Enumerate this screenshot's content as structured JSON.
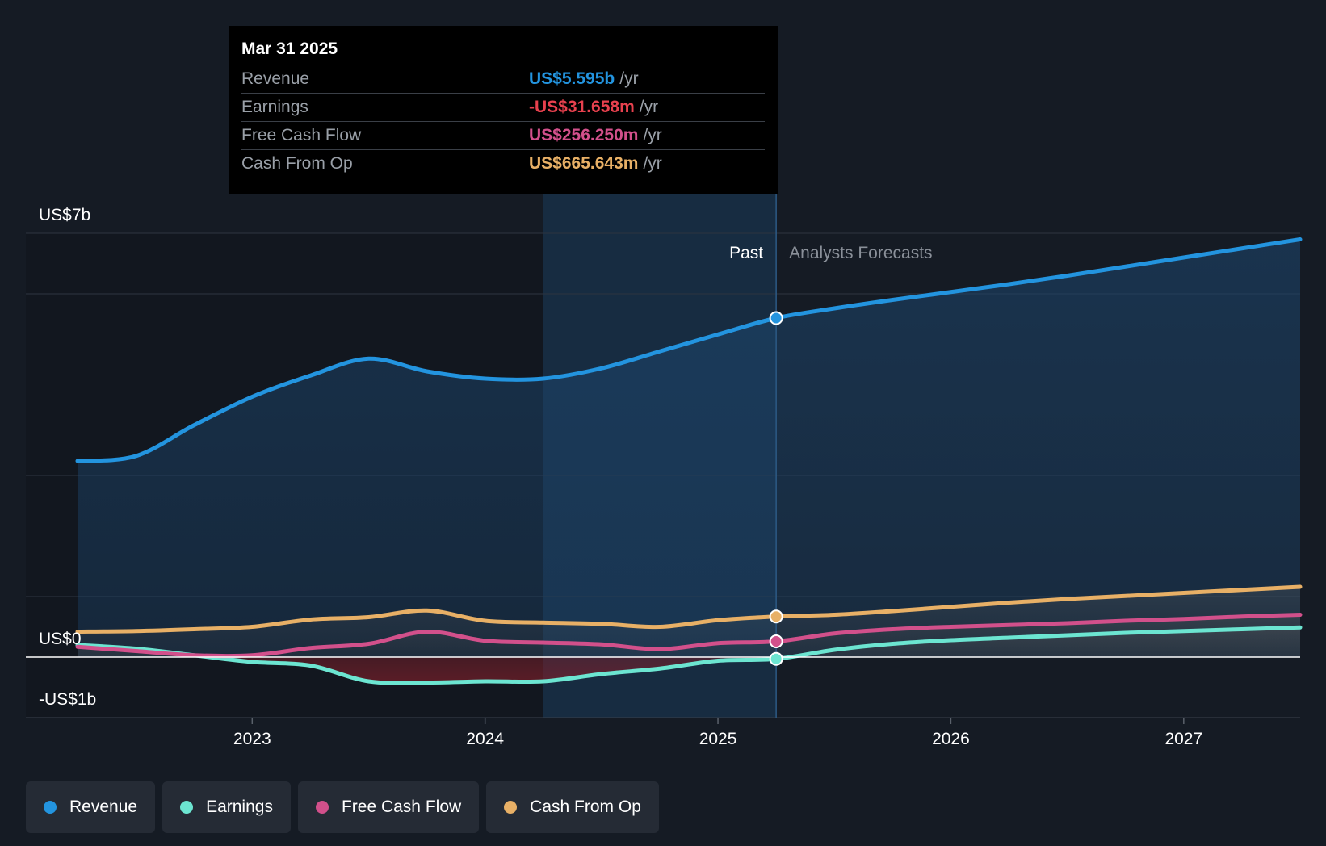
{
  "colors": {
    "background": "#151b24",
    "revenue": "#2394df",
    "earnings": "#6ce5d1",
    "free_cash_flow": "#d2508b",
    "cash_from_op": "#e8b066",
    "grid": "#2e3540",
    "past_shade": "#1d3a58"
  },
  "tooltip": {
    "date": "Mar 31 2025",
    "rows": [
      {
        "name": "Revenue",
        "value": "US$5.595b",
        "unit": "/yr",
        "color": "#2394df"
      },
      {
        "name": "Earnings",
        "value": "-US$31.658m",
        "unit": "/yr",
        "color": "#e8414e"
      },
      {
        "name": "Free Cash Flow",
        "value": "US$256.250m",
        "unit": "/yr",
        "color": "#d2508b"
      },
      {
        "name": "Cash From Op",
        "value": "US$665.643m",
        "unit": "/yr",
        "color": "#e8b066"
      }
    ]
  },
  "legend": [
    {
      "label": "Revenue",
      "color": "#2394df",
      "icon": "revenue-dot-icon"
    },
    {
      "label": "Earnings",
      "color": "#6ce5d1",
      "icon": "earnings-dot-icon"
    },
    {
      "label": "Free Cash Flow",
      "color": "#d2508b",
      "icon": "free-cash-flow-dot-icon"
    },
    {
      "label": "Cash From Op",
      "color": "#e8b066",
      "icon": "cash-from-op-dot-icon"
    }
  ],
  "chart_data": {
    "type": "area",
    "title": "",
    "xlabel": "",
    "ylabel": "",
    "y_top_label": "US$7b",
    "y_zero_label": "US$0",
    "y_bottom_label": "-US$1b",
    "ylim": [
      -1,
      7
    ],
    "xlim": [
      2022.25,
      2027.5
    ],
    "x_ticks": [
      2023,
      2024,
      2025,
      2026,
      2027
    ],
    "x_tick_labels": [
      "2023",
      "2024",
      "2025",
      "2026",
      "2027"
    ],
    "past_label": "Past",
    "forecast_label": "Analysts Forecasts",
    "past_start": 2024.25,
    "divider": 2025.25,
    "grid": true,
    "series": [
      {
        "name": "Revenue",
        "key": "revenue",
        "x": [
          2022.25,
          2022.5,
          2022.75,
          2023.0,
          2023.25,
          2023.5,
          2023.75,
          2024.0,
          2024.25,
          2024.5,
          2024.75,
          2025.0,
          2025.25,
          2025.5,
          2025.75,
          2026.0,
          2026.25,
          2026.5,
          2026.75,
          2027.0,
          2027.25,
          2027.5
        ],
        "y": [
          3.24,
          3.32,
          3.83,
          4.3,
          4.65,
          4.93,
          4.72,
          4.6,
          4.6,
          4.77,
          5.05,
          5.33,
          5.6,
          5.76,
          5.9,
          6.03,
          6.16,
          6.3,
          6.45,
          6.6,
          6.75,
          6.9
        ]
      },
      {
        "name": "Earnings",
        "key": "earnings",
        "x": [
          2022.25,
          2022.5,
          2022.75,
          2023.0,
          2023.25,
          2023.5,
          2023.75,
          2024.0,
          2024.25,
          2024.5,
          2024.75,
          2025.0,
          2025.25,
          2025.5,
          2025.75,
          2026.0,
          2026.25,
          2026.5,
          2026.75,
          2027.0,
          2027.25,
          2027.5
        ],
        "y": [
          0.2,
          0.14,
          0.03,
          -0.08,
          -0.14,
          -0.4,
          -0.42,
          -0.4,
          -0.4,
          -0.28,
          -0.19,
          -0.06,
          -0.03,
          0.12,
          0.22,
          0.28,
          0.32,
          0.36,
          0.4,
          0.43,
          0.46,
          0.49
        ]
      },
      {
        "name": "Free Cash Flow",
        "key": "free_cash_flow",
        "x": [
          2022.25,
          2022.5,
          2022.75,
          2023.0,
          2023.25,
          2023.5,
          2023.75,
          2024.0,
          2024.25,
          2024.5,
          2024.75,
          2025.0,
          2025.25,
          2025.5,
          2025.75,
          2026.0,
          2026.25,
          2026.5,
          2026.75,
          2027.0,
          2027.25,
          2027.5
        ],
        "y": [
          0.17,
          0.1,
          0.03,
          0.03,
          0.15,
          0.22,
          0.42,
          0.27,
          0.24,
          0.21,
          0.13,
          0.23,
          0.26,
          0.39,
          0.46,
          0.5,
          0.53,
          0.56,
          0.6,
          0.63,
          0.67,
          0.7
        ]
      },
      {
        "name": "Cash From Op",
        "key": "cash_from_op",
        "x": [
          2022.25,
          2022.5,
          2022.75,
          2023.0,
          2023.25,
          2023.5,
          2023.75,
          2024.0,
          2024.25,
          2024.5,
          2024.75,
          2025.0,
          2025.25,
          2025.5,
          2025.75,
          2026.0,
          2026.25,
          2026.5,
          2026.75,
          2027.0,
          2027.25,
          2027.5
        ],
        "y": [
          0.42,
          0.43,
          0.46,
          0.5,
          0.62,
          0.66,
          0.77,
          0.6,
          0.57,
          0.55,
          0.5,
          0.61,
          0.67,
          0.7,
          0.76,
          0.83,
          0.9,
          0.96,
          1.01,
          1.06,
          1.11,
          1.16
        ]
      }
    ]
  }
}
